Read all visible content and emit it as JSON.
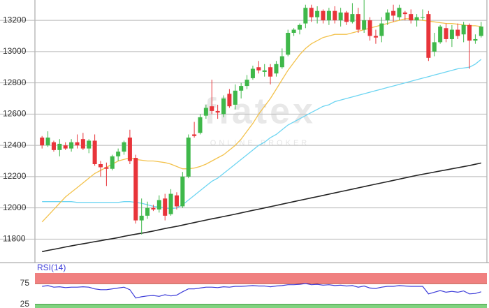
{
  "chart_data": [
    {
      "type": "candlestick",
      "watermark": {
        "name": "flatex",
        "tagline": "ONLINE BROKER"
      },
      "ylim": [
        11650,
        13330
      ],
      "yticks": [
        11800,
        12000,
        12200,
        12400,
        12600,
        12800,
        13000,
        13200
      ],
      "grid": true,
      "up_color": "#3fb84a",
      "down_color": "#e8343a",
      "open": [
        12450,
        12400,
        12420,
        12370,
        12400,
        12380,
        12420,
        12440,
        12380,
        12430,
        12280,
        12260,
        12250,
        12330,
        12360,
        12450,
        12320,
        11920,
        11950,
        12000,
        11990,
        12060,
        11960,
        12080,
        12010,
        12200,
        12470,
        12480,
        12590,
        12650,
        12620,
        12600,
        12730,
        12660,
        12750,
        12780,
        12830,
        12900,
        12870,
        12900,
        12860,
        12900,
        12980,
        13120,
        13140,
        13180,
        13280,
        13220,
        13260,
        13200,
        13260,
        13200,
        13250,
        13190,
        13240,
        13140,
        13200,
        13100,
        13100,
        13200,
        13260,
        13220,
        13250,
        13240,
        13200,
        13220,
        13240,
        13000,
        13060,
        13150,
        13080,
        13140,
        13110,
        13170,
        13070,
        13100
      ],
      "high": [
        12460,
        12490,
        12430,
        12440,
        12420,
        12440,
        12470,
        12480,
        12440,
        12470,
        12300,
        12290,
        12340,
        12380,
        12430,
        12500,
        12340,
        12060,
        12040,
        12020,
        12080,
        12090,
        12120,
        12100,
        12230,
        12470,
        12550,
        12600,
        12660,
        12820,
        12660,
        12720,
        12760,
        12790,
        12800,
        12850,
        12910,
        12940,
        12920,
        12920,
        12940,
        13020,
        13140,
        13150,
        13180,
        13300,
        13300,
        13290,
        13270,
        13280,
        13290,
        13280,
        13260,
        13310,
        13280,
        13330,
        13220,
        13140,
        13220,
        13270,
        13300,
        13300,
        13260,
        13270,
        13240,
        13270,
        13260,
        13120,
        13170,
        13180,
        13170,
        13180,
        13190,
        13180,
        13110,
        13190
      ],
      "low": [
        12380,
        12390,
        12360,
        12330,
        12370,
        12360,
        12380,
        12370,
        12350,
        12270,
        12200,
        12140,
        12240,
        12300,
        12340,
        12280,
        11900,
        11830,
        11930,
        11980,
        11970,
        11920,
        11950,
        11990,
        12000,
        12190,
        12450,
        12470,
        12570,
        12600,
        12570,
        12580,
        12640,
        12630,
        12700,
        12760,
        12820,
        12860,
        12840,
        12790,
        12840,
        12890,
        12970,
        13100,
        13110,
        13150,
        13190,
        13180,
        13180,
        13170,
        13180,
        13160,
        13170,
        13180,
        13120,
        13120,
        13070,
        13050,
        13060,
        13170,
        13190,
        13200,
        13200,
        13180,
        13160,
        13200,
        12940,
        12970,
        13050,
        13060,
        13030,
        13080,
        13060,
        12890,
        13050,
        13090
      ],
      "close": [
        12400,
        12450,
        12370,
        12410,
        12380,
        12420,
        12400,
        12380,
        12430,
        12280,
        12260,
        12250,
        12330,
        12360,
        12420,
        12300,
        11920,
        11950,
        12000,
        11990,
        12050,
        11950,
        12090,
        12010,
        12200,
        12450,
        12460,
        12580,
        12640,
        12620,
        12610,
        12700,
        12650,
        12750,
        12780,
        12820,
        12890,
        12880,
        12880,
        12840,
        12920,
        12970,
        13120,
        13140,
        13170,
        13280,
        13220,
        13260,
        13200,
        13260,
        13200,
        13250,
        13190,
        13240,
        13140,
        13200,
        13100,
        13090,
        13180,
        13250,
        13230,
        13280,
        13240,
        13200,
        13220,
        13220,
        12960,
        13060,
        13160,
        13080,
        13140,
        13100,
        13170,
        13070,
        13080,
        13160
      ],
      "series": [
        {
          "color": "#222222",
          "values": [
            11720,
            11728,
            11735,
            11742,
            11750,
            11757,
            11764,
            11770,
            11777,
            11784,
            11790,
            11797,
            11803,
            11810,
            11818,
            11825,
            11832,
            11838,
            11845,
            11852,
            11860,
            11868,
            11875,
            11882,
            11890,
            11898,
            11906,
            11914,
            11922,
            11930,
            11937,
            11945,
            11952,
            11960,
            11968,
            11976,
            11984,
            11992,
            12000,
            12008,
            12016,
            12024,
            12032,
            12040,
            12048,
            12056,
            12064,
            12072,
            12080,
            12088,
            12096,
            12104,
            12112,
            12120,
            12128,
            12136,
            12144,
            12152,
            12160,
            12168,
            12176,
            12184,
            12192,
            12200,
            12208,
            12215,
            12222,
            12229,
            12236,
            12243,
            12250,
            12257,
            12264,
            12271,
            12279,
            12287
          ]
        },
        {
          "color": "#6dd5f2",
          "values": [
            12040,
            12040,
            12040,
            12040,
            12040,
            12040,
            12035,
            12035,
            12035,
            12035,
            12035,
            12035,
            12035,
            12035,
            12040,
            12040,
            12035,
            12030,
            12020,
            12010,
            12005,
            12000,
            11995,
            12000,
            12020,
            12050,
            12080,
            12110,
            12140,
            12170,
            12190,
            12220,
            12250,
            12280,
            12310,
            12340,
            12370,
            12400,
            12420,
            12450,
            12470,
            12500,
            12530,
            12550,
            12570,
            12590,
            12610,
            12630,
            12650,
            12660,
            12680,
            12690,
            12700,
            12710,
            12720,
            12730,
            12740,
            12750,
            12760,
            12770,
            12780,
            12790,
            12800,
            12810,
            12820,
            12830,
            12840,
            12850,
            12860,
            12870,
            12880,
            12890,
            12895,
            12900,
            12920,
            12950
          ]
        },
        {
          "color": "#f3c24c",
          "values": [
            11910,
            11950,
            11990,
            12030,
            12070,
            12100,
            12130,
            12160,
            12190,
            12220,
            12240,
            12260,
            12280,
            12300,
            12310,
            12320,
            12310,
            12305,
            12300,
            12300,
            12295,
            12290,
            12280,
            12265,
            12250,
            12250,
            12255,
            12265,
            12280,
            12300,
            12320,
            12340,
            12370,
            12400,
            12440,
            12490,
            12540,
            12600,
            12650,
            12700,
            12760,
            12820,
            12880,
            12930,
            12980,
            13020,
            13050,
            13070,
            13090,
            13100,
            13110,
            13110,
            13110,
            13120,
            13130,
            13140,
            13150,
            13160,
            13170,
            13180,
            13190,
            13200,
            13210,
            13210,
            13205,
            13200,
            13195,
            13190,
            13185,
            13180,
            13180,
            13175,
            13170,
            13165,
            13165,
            13160
          ]
        }
      ]
    },
    {
      "type": "line",
      "title": "RSI(14)",
      "ylim": [
        16,
        100
      ],
      "yticks": [
        25,
        75
      ],
      "band_colors": [
        "#7fd37f",
        "#f08080"
      ],
      "series": [
        {
          "color": "#3b3bd9",
          "values": [
            68,
            70,
            66,
            67,
            65,
            66,
            66,
            67,
            66,
            62,
            60,
            60,
            62,
            64,
            66,
            60,
            40,
            43,
            45,
            46,
            44,
            48,
            45,
            47,
            55,
            62,
            62,
            64,
            66,
            66,
            65,
            67,
            66,
            68,
            68,
            69,
            70,
            69,
            69,
            67,
            69,
            70,
            72,
            72,
            73,
            75,
            72,
            73,
            71,
            72,
            70,
            71,
            69,
            70,
            66,
            69,
            64,
            63,
            66,
            68,
            68,
            70,
            69,
            68,
            68,
            68,
            50,
            54,
            58,
            54,
            56,
            54,
            57,
            50,
            51,
            55
          ]
        }
      ]
    }
  ]
}
